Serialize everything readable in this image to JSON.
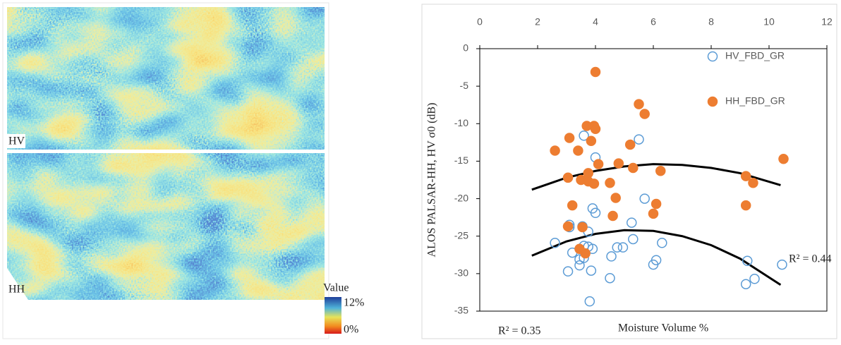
{
  "maps": {
    "top_label": "HV",
    "bottom_label": "HH",
    "legend_title": "Value",
    "legend_max": "12%",
    "legend_min": "0%"
  },
  "chart_data": {
    "type": "scatter",
    "x_label": "Moisture Volume %",
    "y_label": "ALOS PALSAR-HH, HV σ0 (dB)",
    "xlim": [
      0,
      12
    ],
    "xticks": [
      0,
      2,
      4,
      6,
      8,
      10,
      12
    ],
    "ylim": [
      -35,
      0
    ],
    "yticks": [
      -35,
      -30,
      -25,
      -20,
      -15,
      -10,
      -5,
      0
    ],
    "legend": "top-right",
    "series": [
      {
        "name": "HV_FBD_GR",
        "color": "#5b9bd5",
        "filled": false,
        "x": [
          3.6,
          4.0,
          5.5,
          5.7,
          3.9,
          4.0,
          3.1,
          3.1,
          3.55,
          3.75,
          2.6,
          3.2,
          3.45,
          3.6,
          3.45,
          3.6,
          3.75,
          3.9,
          4.75,
          4.95,
          4.55,
          3.05,
          3.85,
          4.5,
          3.8,
          5.25,
          5.3,
          6.3,
          6.0,
          6.1,
          9.25,
          9.2,
          9.5,
          10.45
        ],
        "values": [
          -11.6,
          -14.5,
          -12.1,
          -20.0,
          -21.3,
          -21.9,
          -23.5,
          -23.8,
          -23.7,
          -24.4,
          -25.9,
          -27.2,
          -28.1,
          -27.9,
          -28.9,
          -26.3,
          -26.4,
          -26.7,
          -26.5,
          -26.5,
          -27.7,
          -29.7,
          -29.6,
          -30.6,
          -33.7,
          -23.2,
          -25.4,
          -25.9,
          -28.8,
          -28.2,
          -28.3,
          -31.4,
          -30.7,
          -28.8
        ]
      },
      {
        "name": "HH_FBD_GR",
        "color": "#ed7d31",
        "filled": true,
        "x": [
          4.0,
          5.5,
          5.7,
          3.7,
          3.95,
          4.0,
          3.1,
          3.85,
          5.2,
          2.6,
          3.4,
          4.8,
          4.1,
          5.3,
          6.25,
          3.75,
          3.05,
          3.5,
          3.75,
          3.95,
          4.5,
          4.7,
          3.2,
          6.1,
          6.0,
          4.6,
          3.05,
          3.55,
          3.45,
          3.65,
          9.2,
          9.45,
          9.2,
          10.5
        ],
        "values": [
          -3.1,
          -7.4,
          -8.7,
          -10.3,
          -10.3,
          -10.7,
          -11.9,
          -12.3,
          -12.8,
          -13.6,
          -13.6,
          -15.3,
          -15.4,
          -15.9,
          -16.3,
          -16.6,
          -17.2,
          -17.5,
          -17.7,
          -18.0,
          -17.9,
          -19.9,
          -20.9,
          -20.7,
          -22.0,
          -22.3,
          -23.7,
          -23.8,
          -26.7,
          -27.3,
          -17.0,
          -17.9,
          -20.9,
          -14.7
        ]
      }
    ],
    "trendlines": [
      {
        "label": "R² = 0.44",
        "color": "#000000",
        "x": [
          1.8,
          3,
          4,
          5,
          6,
          7,
          8,
          9,
          10.4
        ],
        "values": [
          -27.6,
          -25.7,
          -24.7,
          -24.2,
          -24.3,
          -25.0,
          -26.2,
          -28.0,
          -31.5
        ]
      },
      {
        "label": "R² = 0.35",
        "color": "#000000",
        "x": [
          1.8,
          3,
          4,
          5,
          6,
          7,
          8,
          9,
          10.4
        ],
        "values": [
          -18.8,
          -17.2,
          -16.3,
          -15.7,
          -15.4,
          -15.5,
          -15.9,
          -16.6,
          -18.2
        ]
      }
    ]
  }
}
